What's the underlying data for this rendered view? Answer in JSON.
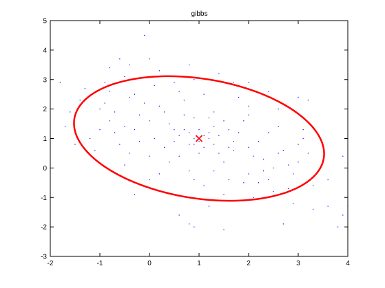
{
  "chart_data": {
    "type": "scatter",
    "title": "gibbs",
    "xlabel": "",
    "ylabel": "",
    "xlim": [
      -2,
      4
    ],
    "ylim": [
      -3,
      5
    ],
    "xticks": [
      -2,
      -1,
      0,
      1,
      2,
      3,
      4
    ],
    "yticks": [
      -3,
      -2,
      -1,
      0,
      1,
      2,
      3,
      4,
      5
    ],
    "grid": false,
    "legend": "none",
    "colors": {
      "points": "#0000ff",
      "ellipse": "#ff0000",
      "mean_marker": "#ff0000",
      "axes": "#000000"
    },
    "series": [
      {
        "name": "samples",
        "kind": "scatter",
        "marker": "dot",
        "points": [
          [
            -0.3,
            2.5
          ],
          [
            0.6,
            2.6
          ],
          [
            1.4,
            3.2
          ],
          [
            2.0,
            2.1
          ],
          [
            2.6,
            2.0
          ],
          [
            3.1,
            1.3
          ],
          [
            2.7,
            0.6
          ],
          [
            2.2,
            -0.5
          ],
          [
            1.5,
            -0.9
          ],
          [
            0.9,
            -0.4
          ],
          [
            0.2,
            -0.2
          ],
          [
            -0.4,
            0.5
          ],
          [
            -0.8,
            1.6
          ],
          [
            -0.9,
            2.2
          ],
          [
            -0.2,
            1.8
          ],
          [
            0.4,
            1.5
          ],
          [
            0.8,
            1.2
          ],
          [
            1.2,
            1.0
          ],
          [
            1.7,
            0.6
          ],
          [
            2.3,
            0.3
          ],
          [
            2.9,
            -0.2
          ],
          [
            3.3,
            -0.6
          ],
          [
            3.5,
            0.2
          ],
          [
            3.0,
            0.8
          ],
          [
            2.4,
            1.2
          ],
          [
            1.9,
            1.6
          ],
          [
            1.3,
            1.9
          ],
          [
            0.7,
            2.3
          ],
          [
            0.1,
            2.8
          ],
          [
            -0.5,
            3.1
          ],
          [
            -1.3,
            2.7
          ],
          [
            -1.6,
            1.9
          ],
          [
            -1.2,
            1.0
          ],
          [
            -0.6,
            0.8
          ],
          [
            0.0,
            0.4
          ],
          [
            0.5,
            0.9
          ],
          [
            1.0,
            0.5
          ],
          [
            1.5,
            0.2
          ],
          [
            2.0,
            -0.2
          ],
          [
            2.5,
            -0.8
          ],
          [
            2.9,
            -1.2
          ],
          [
            3.6,
            -1.3
          ],
          [
            3.9,
            -1.6
          ],
          [
            3.9,
            0.4
          ],
          [
            3.2,
            2.3
          ],
          [
            2.4,
            2.6
          ],
          [
            1.7,
            2.9
          ],
          [
            0.9,
            3.0
          ],
          [
            0.2,
            3.3
          ],
          [
            -0.6,
            3.7
          ],
          [
            -0.1,
            4.5
          ],
          [
            -0.9,
            2.9
          ],
          [
            -1.4,
            2.3
          ],
          [
            -1.7,
            1.4
          ],
          [
            -1.1,
            0.6
          ],
          [
            -0.5,
            0.1
          ],
          [
            0.3,
            0.7
          ],
          [
            0.9,
            0.8
          ],
          [
            1.3,
            1.4
          ],
          [
            1.8,
            1.2
          ],
          [
            2.2,
            0.9
          ],
          [
            2.6,
            0.5
          ],
          [
            3.0,
            0.2
          ],
          [
            3.4,
            -0.1
          ],
          [
            2.8,
            -0.7
          ],
          [
            2.1,
            -1.0
          ],
          [
            1.2,
            -1.3
          ],
          [
            0.8,
            -1.9
          ],
          [
            0.6,
            -1.6
          ],
          [
            0.0,
            -0.4
          ],
          [
            -0.3,
            -0.9
          ],
          [
            1.1,
            -0.6
          ],
          [
            1.6,
            -0.4
          ],
          [
            2.3,
            -0.1
          ],
          [
            1.4,
            0.5
          ],
          [
            0.6,
            0.4
          ],
          [
            0.1,
            1.0
          ],
          [
            -0.3,
            1.3
          ],
          [
            0.3,
            1.9
          ],
          [
            0.9,
            1.7
          ],
          [
            1.5,
            1.6
          ],
          [
            2.0,
            1.8
          ],
          [
            2.6,
            1.4
          ],
          [
            3.1,
            1.0
          ],
          [
            1.8,
            2.4
          ],
          [
            1.1,
            2.5
          ],
          [
            0.5,
            2.9
          ],
          [
            -0.1,
            2.2
          ],
          [
            -0.7,
            1.9
          ],
          [
            -1.0,
            1.3
          ],
          [
            -0.5,
            1.4
          ],
          [
            0.0,
            1.6
          ],
          [
            0.6,
            1.1
          ],
          [
            1.0,
            1.3
          ],
          [
            1.3,
            0.8
          ],
          [
            1.7,
            0.9
          ],
          [
            2.1,
            0.4
          ],
          [
            2.5,
            0.0
          ],
          [
            2.0,
            0.7
          ],
          [
            1.6,
            1.3
          ],
          [
            1.2,
            1.7
          ],
          [
            0.7,
            1.8
          ],
          [
            0.2,
            2.1
          ],
          [
            -0.4,
            2.4
          ],
          [
            -0.8,
            2.6
          ],
          [
            -1.0,
            2.0
          ],
          [
            -0.7,
            1.2
          ],
          [
            -0.2,
            0.9
          ],
          [
            0.4,
            0.2
          ],
          [
            0.8,
            -0.1
          ],
          [
            1.3,
            -0.1
          ],
          [
            1.9,
            -0.5
          ],
          [
            2.4,
            -0.4
          ],
          [
            2.8,
            0.1
          ],
          [
            3.2,
            0.5
          ],
          [
            3.6,
            -0.4
          ],
          [
            4.0,
            -1.3
          ],
          [
            3.8,
            -2.0
          ],
          [
            0.9,
            -2.0
          ],
          [
            1.5,
            -2.1
          ],
          [
            2.7,
            -1.9
          ],
          [
            3.3,
            -1.4
          ],
          [
            -1.8,
            2.9
          ],
          [
            -1.5,
            0.8
          ],
          [
            -0.8,
            3.4
          ],
          [
            0.0,
            3.7
          ],
          [
            0.8,
            3.5
          ],
          [
            2.0,
            2.9
          ],
          [
            3.0,
            2.4
          ],
          [
            -0.4,
            3.5
          ],
          [
            1.1,
            1.1
          ],
          [
            1.0,
            0.9
          ],
          [
            0.9,
            1.0
          ],
          [
            1.2,
            1.2
          ],
          [
            0.8,
            0.8
          ],
          [
            1.1,
            0.7
          ],
          [
            0.7,
            1.3
          ],
          [
            1.4,
            1.1
          ],
          [
            1.6,
            0.7
          ],
          [
            0.5,
            1.3
          ]
        ]
      },
      {
        "name": "confidence ellipse",
        "kind": "ellipse",
        "center": [
          1.0,
          1.0
        ],
        "semi_axis_major": 2.65,
        "semi_axis_minor": 1.95,
        "rotation_deg": -27
      },
      {
        "name": "mean",
        "kind": "marker",
        "marker": "x",
        "points": [
          [
            1.0,
            1.0
          ]
        ]
      }
    ]
  }
}
